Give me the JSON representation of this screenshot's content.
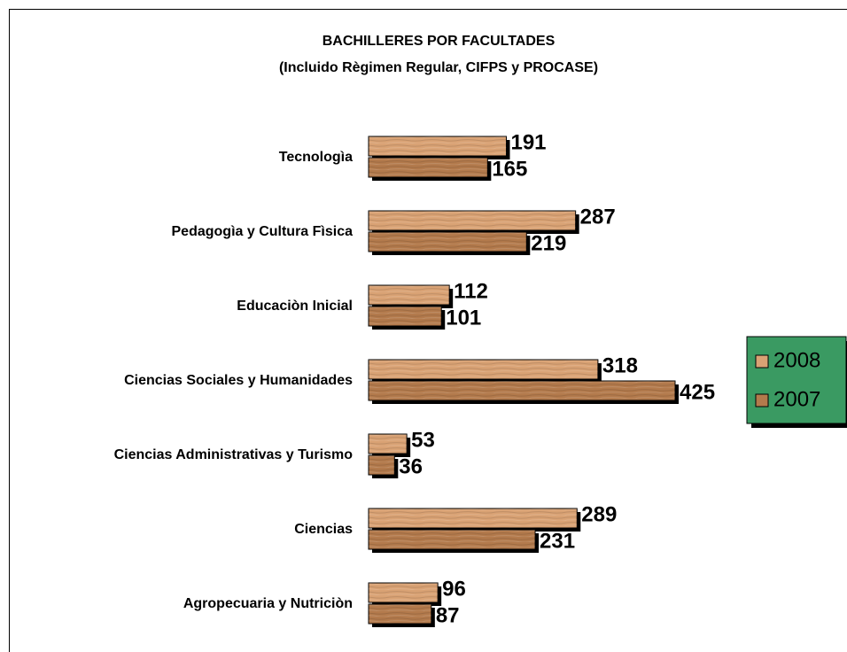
{
  "chart_data": {
    "type": "hbar",
    "title": "BACHILLERES POR FACULTADES",
    "subtitle": "(Incluido Règimen Regular, CIFPS y PROCASE)",
    "categories": [
      "Tecnologìa",
      "Pedagogìa y Cultura Fìsica",
      "Educaciòn Inicial",
      "Ciencias Sociales y Humanidades",
      "Ciencias Administrativas y Turismo",
      "Ciencias",
      "Agropecuaria y Nutriciòn"
    ],
    "series": [
      {
        "name": "2008",
        "color": "#d9a274",
        "values": [
          191,
          287,
          112,
          318,
          53,
          289,
          96
        ]
      },
      {
        "name": "2007",
        "color": "#b37a4c",
        "values": [
          165,
          219,
          101,
          425,
          36,
          231,
          87
        ]
      }
    ],
    "legend": "right",
    "legend_color": "#3a9a62"
  }
}
